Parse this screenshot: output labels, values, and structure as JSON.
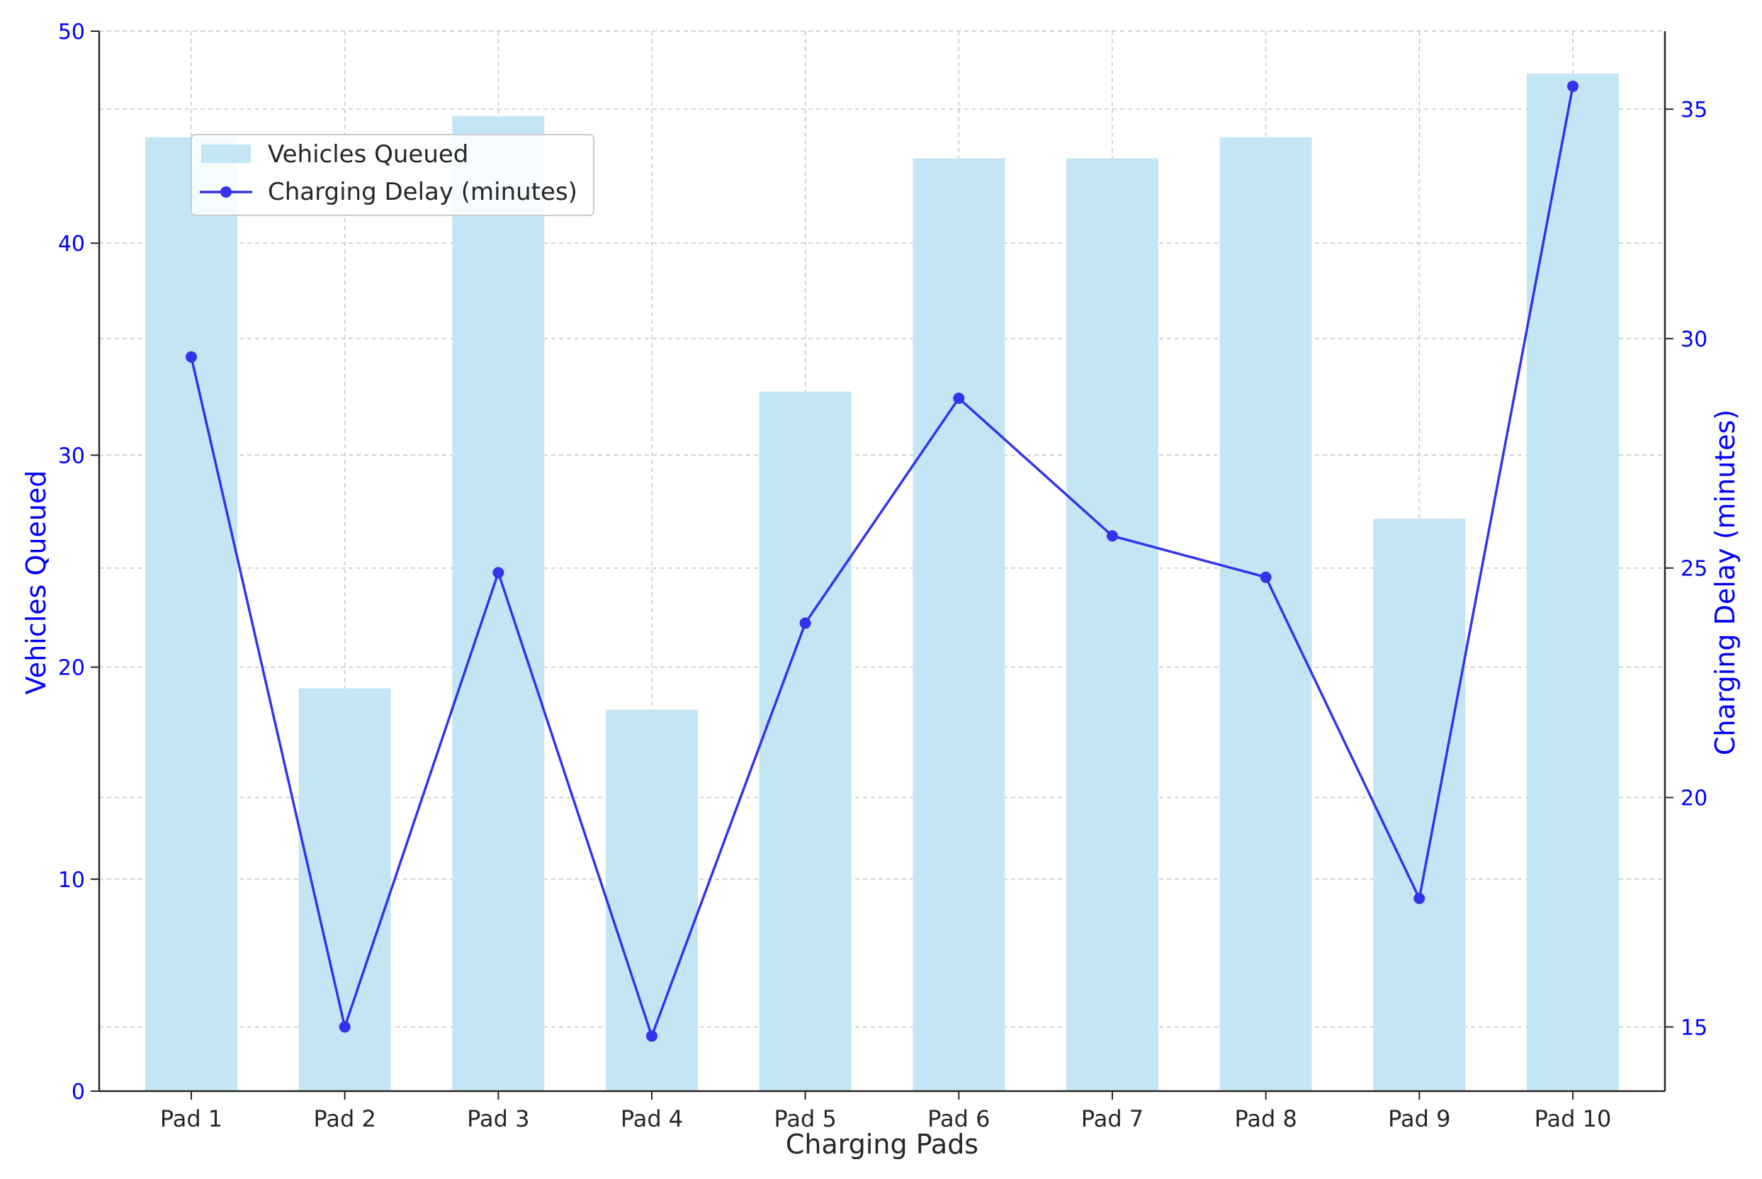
{
  "colors": {
    "bar": "#c4e6f4",
    "line": "#3333ee",
    "axis_text_blue": "#0000ff",
    "tick_text": "#262626",
    "grid": "#c8c8c8",
    "spine": "#262626"
  },
  "chart_data": {
    "type": "bar+line",
    "categories": [
      "Pad 1",
      "Pad 2",
      "Pad 3",
      "Pad 4",
      "Pad 5",
      "Pad 6",
      "Pad 7",
      "Pad 8",
      "Pad 9",
      "Pad 10"
    ],
    "xlabel": "Charging Pads",
    "grid": true,
    "legend_position": "top-left",
    "series": [
      {
        "name": "Vehicles Queued",
        "type": "bar",
        "axis": "left",
        "values": [
          45,
          19,
          46,
          18,
          33,
          44,
          44,
          45,
          27,
          48
        ]
      },
      {
        "name": "Charging Delay (minutes)",
        "type": "line",
        "axis": "right",
        "values": [
          29.6,
          15.0,
          24.9,
          14.8,
          23.8,
          28.7,
          25.7,
          24.8,
          17.8,
          35.5
        ]
      }
    ],
    "left_axis": {
      "label": "Vehicles Queued",
      "ylim": [
        0,
        50
      ],
      "ticks": [
        0,
        10,
        20,
        30,
        40,
        50
      ]
    },
    "right_axis": {
      "label": "Charging Delay (minutes)",
      "ylim": [
        13.6,
        36.7
      ],
      "ticks": [
        15,
        20,
        25,
        30,
        35
      ]
    }
  }
}
